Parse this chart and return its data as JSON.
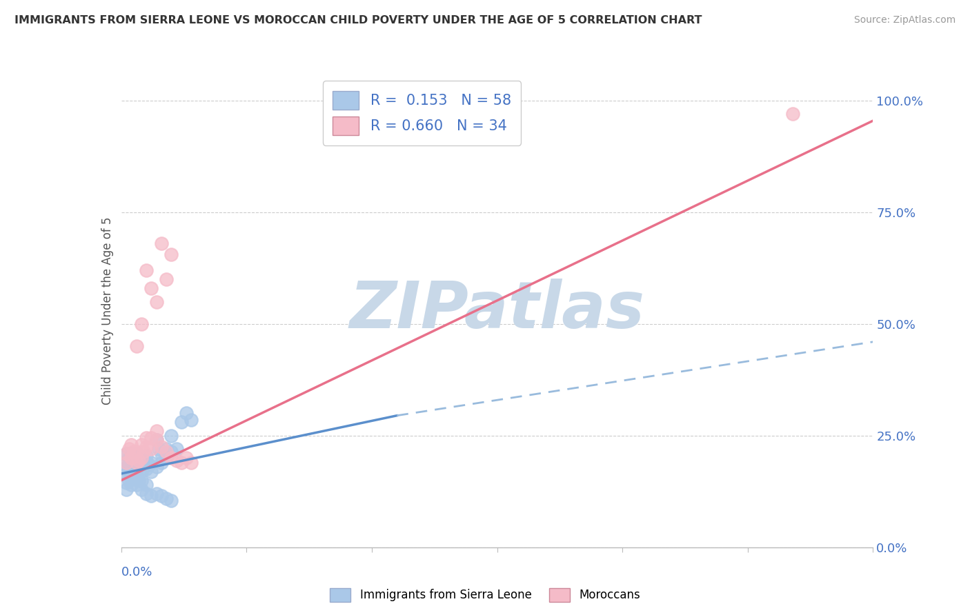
{
  "title": "IMMIGRANTS FROM SIERRA LEONE VS MOROCCAN CHILD POVERTY UNDER THE AGE OF 5 CORRELATION CHART",
  "source": "Source: ZipAtlas.com",
  "ylabel": "Child Poverty Under the Age of 5",
  "ytick_labels": [
    "0.0%",
    "25.0%",
    "50.0%",
    "75.0%",
    "100.0%"
  ],
  "ytick_vals": [
    0.0,
    0.25,
    0.5,
    0.75,
    1.0
  ],
  "xlim": [
    0.0,
    0.15
  ],
  "ylim": [
    0.0,
    1.06
  ],
  "legend_labels": [
    "Immigrants from Sierra Leone",
    "Moroccans"
  ],
  "legend_R": [
    "0.153",
    "0.660"
  ],
  "legend_N": [
    "58",
    "34"
  ],
  "blue_color": "#aac8e8",
  "pink_color": "#f5bbc8",
  "blue_line_solid_color": "#5b8fcc",
  "blue_line_dash_color": "#99bbdd",
  "pink_line_color": "#e8708a",
  "watermark": "ZIPatlas",
  "watermark_color": "#c8d8e8",
  "blue_x": [
    0.0005,
    0.001,
    0.001,
    0.001,
    0.0015,
    0.0015,
    0.002,
    0.002,
    0.002,
    0.0025,
    0.0025,
    0.003,
    0.003,
    0.003,
    0.003,
    0.0035,
    0.0035,
    0.004,
    0.004,
    0.004,
    0.0045,
    0.005,
    0.005,
    0.005,
    0.0055,
    0.006,
    0.006,
    0.007,
    0.007,
    0.0075,
    0.008,
    0.008,
    0.009,
    0.009,
    0.01,
    0.01,
    0.011,
    0.012,
    0.013,
    0.014,
    0.001,
    0.001,
    0.0015,
    0.002,
    0.002,
    0.0025,
    0.003,
    0.003,
    0.0035,
    0.004,
    0.004,
    0.005,
    0.005,
    0.006,
    0.007,
    0.008,
    0.009,
    0.01
  ],
  "blue_y": [
    0.175,
    0.19,
    0.21,
    0.165,
    0.185,
    0.2,
    0.17,
    0.19,
    0.21,
    0.18,
    0.2,
    0.16,
    0.175,
    0.19,
    0.21,
    0.185,
    0.2,
    0.17,
    0.185,
    0.2,
    0.19,
    0.175,
    0.19,
    0.205,
    0.185,
    0.17,
    0.19,
    0.18,
    0.24,
    0.22,
    0.19,
    0.21,
    0.2,
    0.22,
    0.215,
    0.25,
    0.22,
    0.28,
    0.3,
    0.285,
    0.145,
    0.13,
    0.15,
    0.14,
    0.16,
    0.155,
    0.14,
    0.16,
    0.15,
    0.13,
    0.15,
    0.12,
    0.14,
    0.115,
    0.12,
    0.115,
    0.11,
    0.105
  ],
  "pink_x": [
    0.001,
    0.001,
    0.0015,
    0.002,
    0.002,
    0.0025,
    0.003,
    0.003,
    0.0035,
    0.004,
    0.004,
    0.0045,
    0.005,
    0.005,
    0.006,
    0.006,
    0.007,
    0.007,
    0.008,
    0.009,
    0.01,
    0.011,
    0.012,
    0.014,
    0.003,
    0.004,
    0.005,
    0.006,
    0.007,
    0.008,
    0.009,
    0.01,
    0.013,
    0.134
  ],
  "pink_y": [
    0.19,
    0.21,
    0.22,
    0.2,
    0.23,
    0.215,
    0.19,
    0.215,
    0.195,
    0.2,
    0.23,
    0.215,
    0.225,
    0.245,
    0.22,
    0.245,
    0.24,
    0.26,
    0.225,
    0.215,
    0.2,
    0.195,
    0.19,
    0.19,
    0.45,
    0.5,
    0.62,
    0.58,
    0.55,
    0.68,
    0.6,
    0.655,
    0.2,
    0.97
  ],
  "blue_line_x0": 0.0,
  "blue_line_y0": 0.165,
  "blue_line_xsplit": 0.055,
  "blue_line_ysplit": 0.295,
  "blue_line_x1": 0.15,
  "blue_line_y1": 0.46,
  "pink_line_x0": 0.0,
  "pink_line_y0": 0.15,
  "pink_line_x1": 0.15,
  "pink_line_y1": 0.955
}
